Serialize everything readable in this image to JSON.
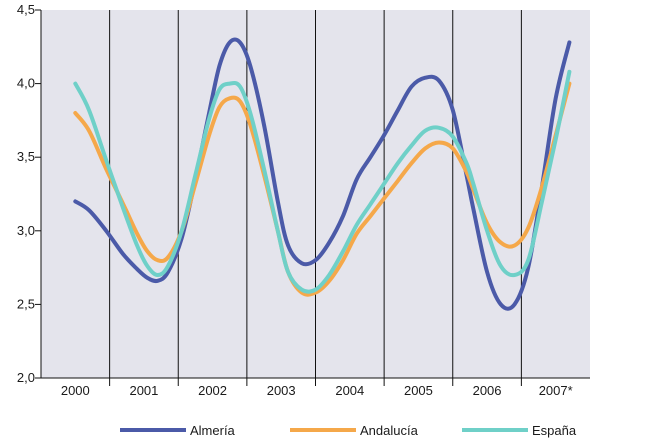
{
  "chart_data": {
    "type": "line",
    "title": "",
    "xlabel": "",
    "ylabel": "",
    "categories": [
      "2000",
      "2001",
      "2002",
      "2003",
      "2004",
      "2005",
      "2006",
      "2007*"
    ],
    "ylim": [
      2.0,
      4.5
    ],
    "yticks": [
      "2,0",
      "2,5",
      "3,0",
      "3,5",
      "4,0",
      "4,5"
    ],
    "ytick_values": [
      2.0,
      2.5,
      3.0,
      3.5,
      4.0,
      4.5
    ],
    "grid": {
      "vertical_separators": true,
      "horizontal": false
    },
    "legend_position": "bottom",
    "background_color": "#e4e4ec",
    "series": [
      {
        "name": "Almería",
        "color": "#4b5aa8",
        "x": [
          0.0,
          0.2,
          0.45,
          0.7,
          0.9,
          1.05,
          1.2,
          1.35,
          1.55,
          1.75,
          1.95,
          2.1,
          2.25,
          2.4,
          2.55,
          2.75,
          2.95,
          3.1,
          3.3,
          3.5,
          3.7,
          3.9,
          4.1,
          4.3,
          4.5,
          4.7,
          4.9,
          5.1,
          5.3,
          5.5,
          5.7,
          5.8,
          6.0,
          6.2,
          6.4,
          6.6,
          6.8,
          7.0,
          7.2
        ],
        "values": [
          3.2,
          3.14,
          3.0,
          2.84,
          2.74,
          2.68,
          2.66,
          2.72,
          2.95,
          3.35,
          3.8,
          4.12,
          4.28,
          4.28,
          4.12,
          3.72,
          3.2,
          2.9,
          2.78,
          2.8,
          2.92,
          3.1,
          3.35,
          3.5,
          3.65,
          3.82,
          3.98,
          4.04,
          4.02,
          3.82,
          3.38,
          3.15,
          2.72,
          2.5,
          2.5,
          2.75,
          3.3,
          3.9,
          4.28
        ]
      },
      {
        "name": "Andalucía",
        "color": "#f5a84a",
        "x": [
          0.0,
          0.2,
          0.45,
          0.7,
          0.9,
          1.05,
          1.2,
          1.35,
          1.55,
          1.75,
          1.95,
          2.1,
          2.25,
          2.4,
          2.55,
          2.75,
          2.95,
          3.1,
          3.3,
          3.5,
          3.7,
          3.9,
          4.1,
          4.3,
          4.5,
          4.7,
          4.9,
          5.1,
          5.3,
          5.5,
          5.7,
          5.8,
          6.0,
          6.2,
          6.4,
          6.6,
          6.8,
          7.0,
          7.2
        ],
        "values": [
          3.8,
          3.68,
          3.42,
          3.18,
          2.98,
          2.86,
          2.8,
          2.82,
          3.0,
          3.32,
          3.65,
          3.84,
          3.9,
          3.88,
          3.72,
          3.38,
          3.0,
          2.72,
          2.58,
          2.58,
          2.66,
          2.8,
          2.98,
          3.1,
          3.22,
          3.34,
          3.46,
          3.56,
          3.6,
          3.56,
          3.4,
          3.28,
          3.05,
          2.92,
          2.9,
          3.02,
          3.3,
          3.65,
          4.0
        ]
      },
      {
        "name": "España",
        "color": "#6fd0c8",
        "x": [
          0.0,
          0.2,
          0.45,
          0.7,
          0.9,
          1.05,
          1.2,
          1.35,
          1.55,
          1.75,
          1.95,
          2.1,
          2.25,
          2.4,
          2.55,
          2.75,
          2.95,
          3.1,
          3.3,
          3.5,
          3.7,
          3.9,
          4.1,
          4.3,
          4.5,
          4.7,
          4.9,
          5.1,
          5.3,
          5.5,
          5.7,
          5.8,
          6.0,
          6.2,
          6.4,
          6.6,
          6.8,
          7.0,
          7.2
        ],
        "values": [
          4.0,
          3.82,
          3.48,
          3.15,
          2.9,
          2.76,
          2.7,
          2.76,
          3.0,
          3.38,
          3.76,
          3.96,
          4.0,
          3.98,
          3.8,
          3.42,
          3.0,
          2.72,
          2.6,
          2.6,
          2.7,
          2.86,
          3.04,
          3.18,
          3.32,
          3.46,
          3.58,
          3.68,
          3.7,
          3.64,
          3.46,
          3.32,
          3.0,
          2.76,
          2.7,
          2.8,
          3.2,
          3.62,
          4.08
        ]
      }
    ]
  }
}
